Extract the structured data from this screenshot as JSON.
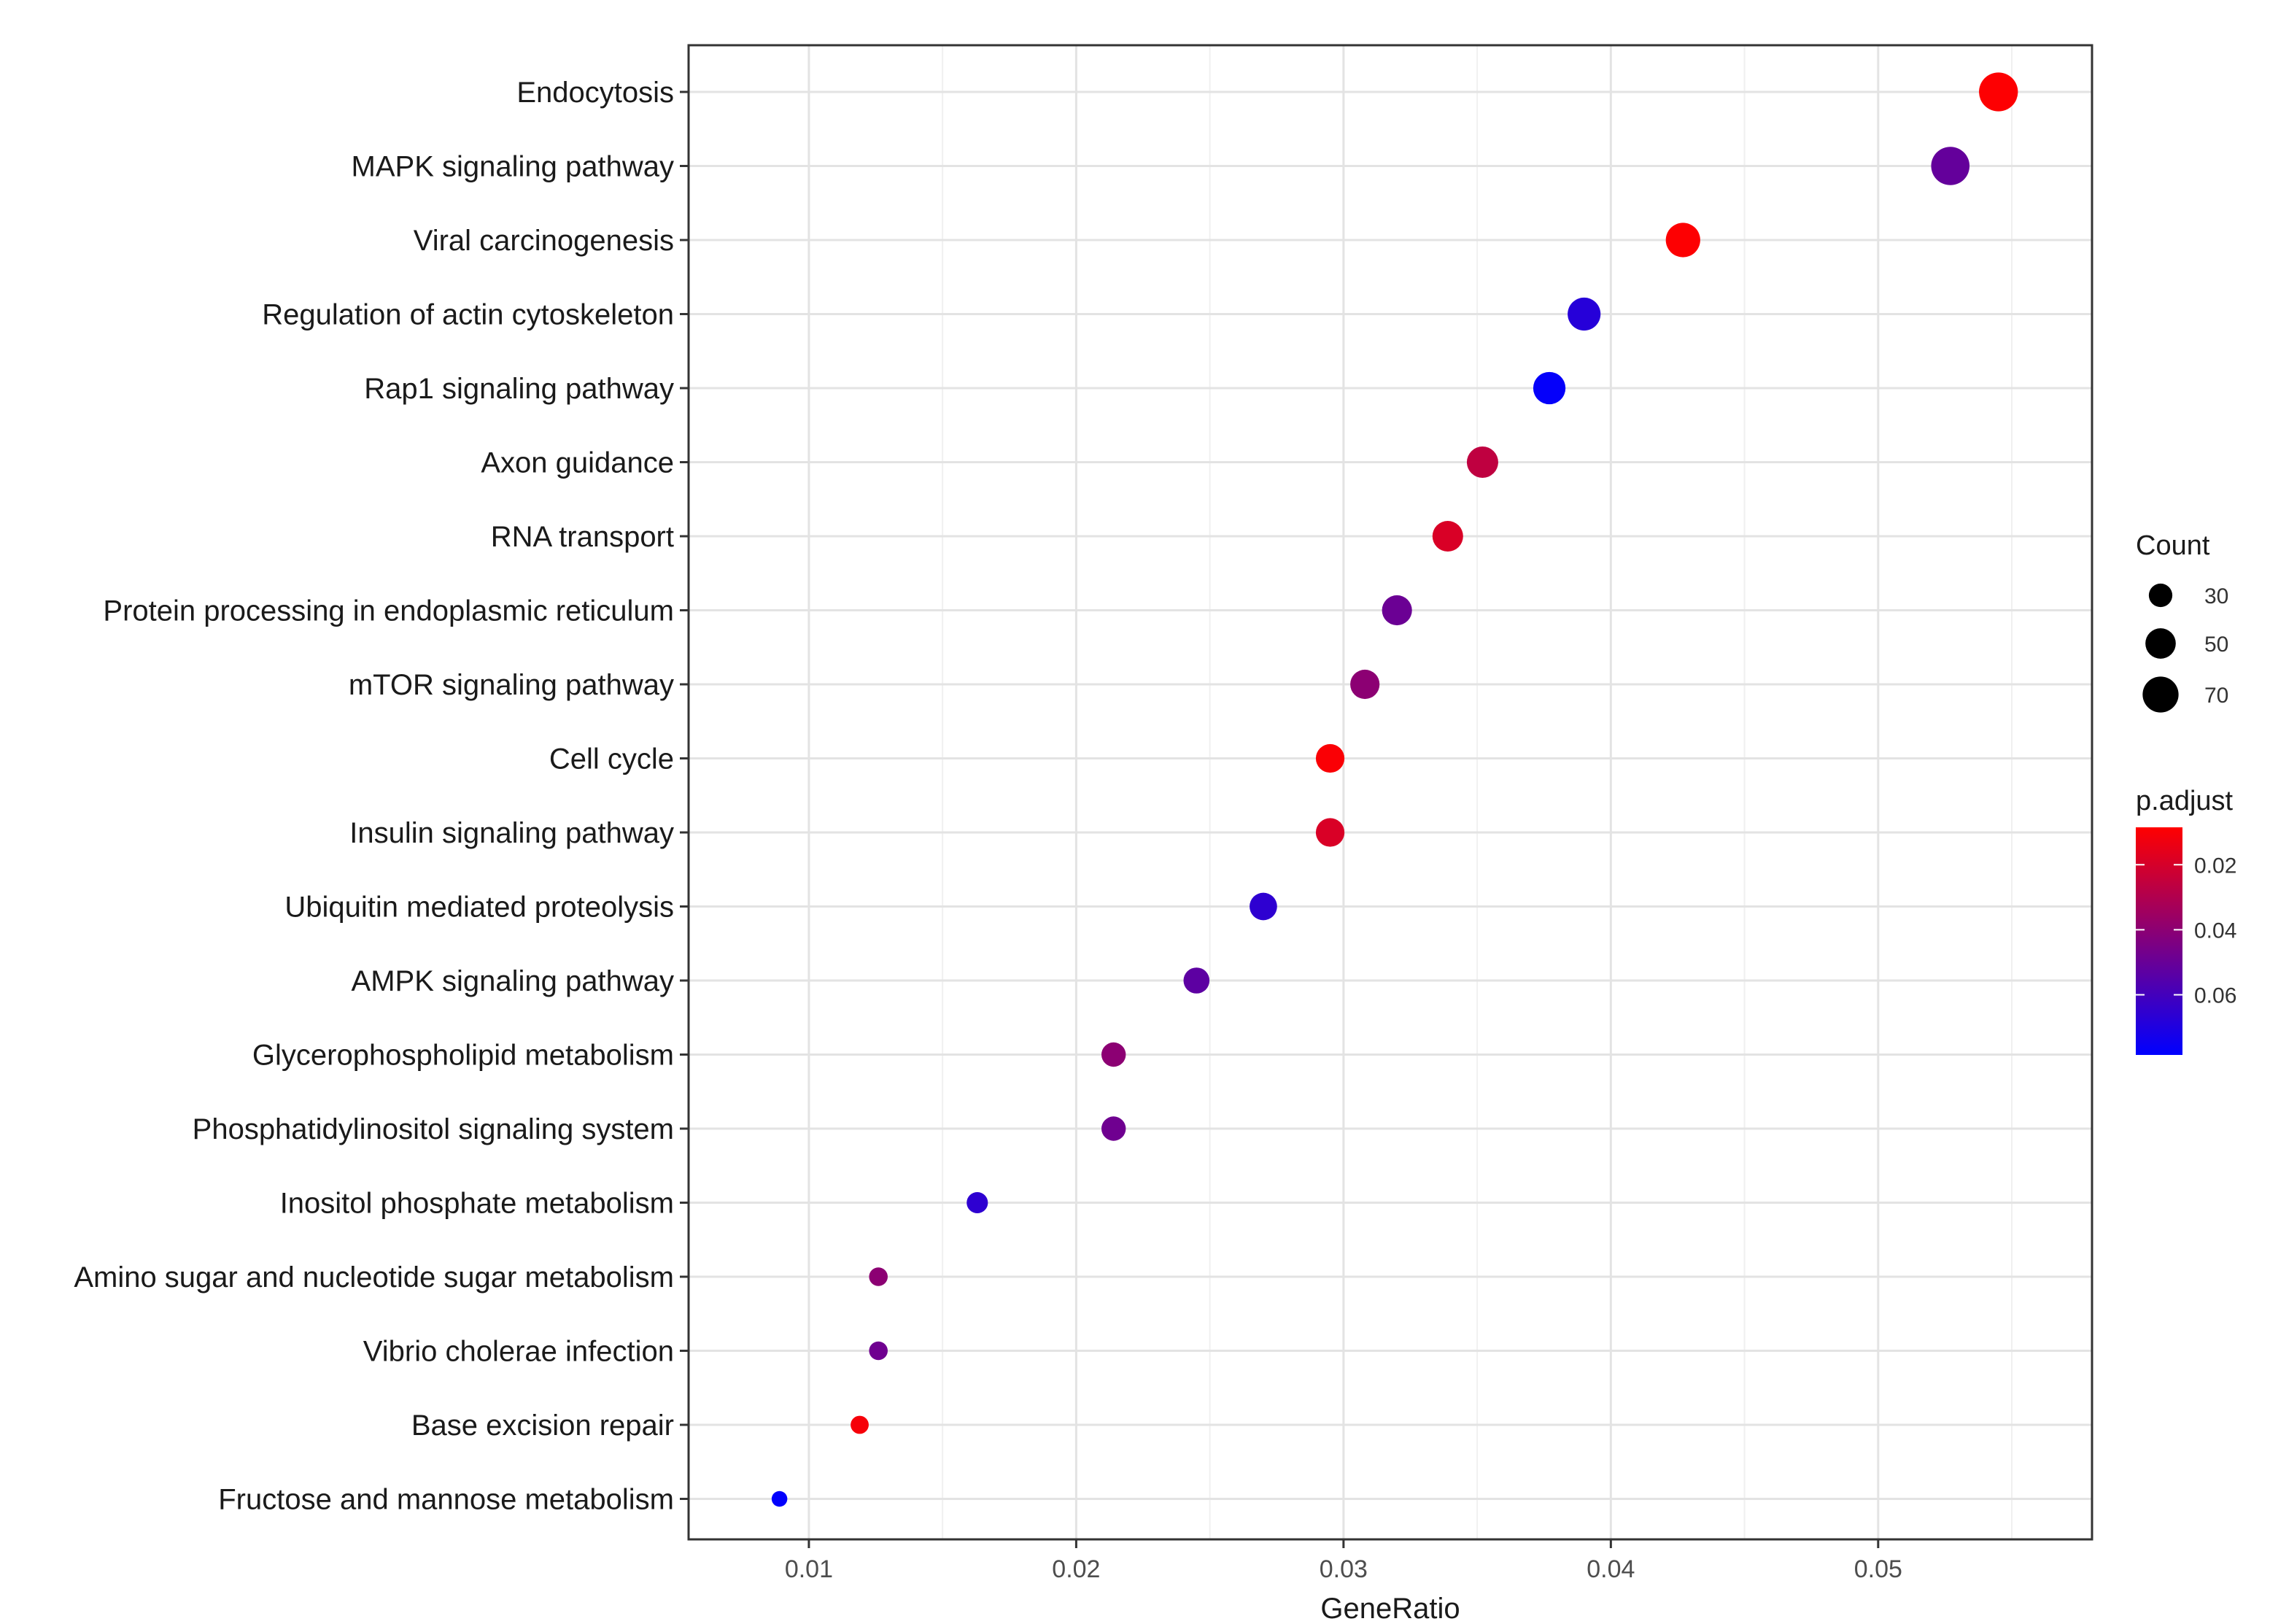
{
  "chart_data": {
    "type": "scatter",
    "title": "",
    "xlabel": "GeneRatio",
    "ylabel": "",
    "xlim": [
      0.0055,
      0.058
    ],
    "x_ticks": [
      0.01,
      0.02,
      0.03,
      0.04,
      0.05
    ],
    "x_tick_labels": [
      "0.01",
      "0.02",
      "0.03",
      "0.04",
      "0.05"
    ],
    "grid": true,
    "points": [
      {
        "term": "Endocytosis",
        "gene_ratio": 0.0545,
        "count": 74,
        "p_adjust": 0.009
      },
      {
        "term": "MAPK signaling pathway",
        "gene_ratio": 0.0527,
        "count": 72,
        "p_adjust": 0.051
      },
      {
        "term": "Viral carcinogenesis",
        "gene_ratio": 0.0427,
        "count": 58,
        "p_adjust": 0.009
      },
      {
        "term": "Regulation of actin cytoskeleton",
        "gene_ratio": 0.039,
        "count": 53,
        "p_adjust": 0.068
      },
      {
        "term": "Rap1 signaling pathway",
        "gene_ratio": 0.0377,
        "count": 51,
        "p_adjust": 0.077
      },
      {
        "term": "Axon guidance",
        "gene_ratio": 0.0352,
        "count": 48,
        "p_adjust": 0.026
      },
      {
        "term": "RNA transport",
        "gene_ratio": 0.0339,
        "count": 46,
        "p_adjust": 0.019
      },
      {
        "term": "Protein processing in endoplasmic reticulum",
        "gene_ratio": 0.032,
        "count": 44,
        "p_adjust": 0.049
      },
      {
        "term": "mTOR signaling pathway",
        "gene_ratio": 0.0308,
        "count": 42,
        "p_adjust": 0.04
      },
      {
        "term": "Cell cycle",
        "gene_ratio": 0.0295,
        "count": 40,
        "p_adjust": 0.01
      },
      {
        "term": "Insulin signaling pathway",
        "gene_ratio": 0.0295,
        "count": 40,
        "p_adjust": 0.019
      },
      {
        "term": "Ubiquitin mediated proteolysis",
        "gene_ratio": 0.027,
        "count": 37,
        "p_adjust": 0.066
      },
      {
        "term": "AMPK signaling pathway",
        "gene_ratio": 0.0245,
        "count": 33,
        "p_adjust": 0.053
      },
      {
        "term": "Glycerophospholipid metabolism",
        "gene_ratio": 0.0214,
        "count": 29,
        "p_adjust": 0.04
      },
      {
        "term": "Phosphatidylinositol signaling system",
        "gene_ratio": 0.0214,
        "count": 29,
        "p_adjust": 0.048
      },
      {
        "term": "Inositol phosphate metabolism",
        "gene_ratio": 0.0163,
        "count": 22,
        "p_adjust": 0.066
      },
      {
        "term": "Amino sugar and nucleotide sugar metabolism",
        "gene_ratio": 0.0126,
        "count": 17,
        "p_adjust": 0.04
      },
      {
        "term": "Vibrio cholerae infection",
        "gene_ratio": 0.0126,
        "count": 17,
        "p_adjust": 0.048
      },
      {
        "term": "Base excision repair",
        "gene_ratio": 0.0119,
        "count": 16,
        "p_adjust": 0.011
      },
      {
        "term": "Fructose and mannose metabolism",
        "gene_ratio": 0.0089,
        "count": 12,
        "p_adjust": 0.078
      }
    ],
    "size_legend": {
      "title": "Count",
      "values": [
        30,
        50,
        70
      ],
      "labels": [
        "30",
        "50",
        "70"
      ]
    },
    "color_legend": {
      "title": "p.adjust",
      "range": [
        0.0085,
        0.0785
      ],
      "ticks": [
        0.02,
        0.04,
        0.06
      ],
      "tick_labels": [
        "0.02",
        "0.04",
        "0.06"
      ],
      "low_color": "#ff0000",
      "high_color": "#0000ff"
    },
    "legend_position": "right"
  }
}
